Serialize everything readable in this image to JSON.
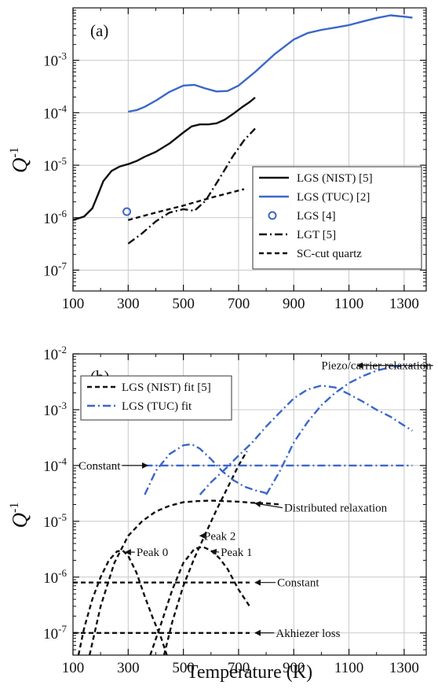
{
  "colors": {
    "black": "#111111",
    "blue": "#3a67c9",
    "grid": "#c8c8c8"
  },
  "chart_data": [
    {
      "type": "line",
      "panel_label": "(a)",
      "ylabel": "Q",
      "ylabel_exponent": "-1",
      "x_scale": "linear",
      "y_scale": "log",
      "xlim": [
        100,
        1380
      ],
      "ylim": [
        4e-08,
        0.01
      ],
      "x_ticks": [
        100,
        300,
        500,
        700,
        900,
        1100,
        1300
      ],
      "y_ticks": [
        1e-07,
        1e-06,
        1e-05,
        0.0001,
        0.001
      ],
      "y_tick_labels": [
        {
          "base": "10",
          "exp": "-7"
        },
        {
          "base": "10",
          "exp": "-6"
        },
        {
          "base": "10",
          "exp": "-5"
        },
        {
          "base": "10",
          "exp": "-4"
        },
        {
          "base": "10",
          "exp": "-3"
        }
      ],
      "grid": true,
      "legend_position": "right-middle",
      "series": [
        {
          "name": "LGS (NIST) [5]",
          "color": "#111111",
          "dash": "solid",
          "marker": "none",
          "x": [
            100,
            140,
            170,
            190,
            210,
            240,
            270,
            300,
            330,
            360,
            400,
            450,
            500,
            530,
            560,
            590,
            620,
            650,
            680,
            710,
            740,
            760
          ],
          "y": [
            9e-07,
            1.05e-06,
            1.5e-06,
            2.7e-06,
            5e-06,
            7.8e-06,
            9.5e-06,
            1.05e-05,
            1.2e-05,
            1.45e-05,
            1.8e-05,
            2.6e-05,
            4.2e-05,
            5.5e-05,
            6e-05,
            6e-05,
            6.3e-05,
            7.4e-05,
            9.5e-05,
            0.000125,
            0.00016,
            0.000195
          ]
        },
        {
          "name": "LGS (TUC) [2]",
          "color": "#3a67c9",
          "dash": "solid",
          "marker": "none",
          "x": [
            300,
            330,
            360,
            400,
            450,
            500,
            540,
            580,
            620,
            660,
            700,
            760,
            830,
            900,
            950,
            1000,
            1050,
            1100,
            1150,
            1200,
            1250,
            1300,
            1330
          ],
          "y": [
            0.000105,
            0.000112,
            0.00013,
            0.00017,
            0.00025,
            0.00033,
            0.00034,
            0.00029,
            0.000255,
            0.00026,
            0.00033,
            0.0006,
            0.0013,
            0.0025,
            0.0033,
            0.0038,
            0.0042,
            0.0047,
            0.0055,
            0.0064,
            0.0072,
            0.0068,
            0.0065
          ]
        },
        {
          "name": "LGS [4]",
          "color": "#3a67c9",
          "dash": "none",
          "marker": "open-circle",
          "x": [
            295
          ],
          "y": [
            1.3e-06
          ]
        },
        {
          "name": "LGT [5]",
          "color": "#111111",
          "dash": "dashdot",
          "marker": "none",
          "x": [
            300,
            350,
            400,
            450,
            500,
            540,
            580,
            630,
            680,
            720,
            760
          ],
          "y": [
            3.2e-07,
            5e-07,
            8.5e-07,
            1.25e-06,
            1.45e-06,
            1.35e-06,
            2.1e-06,
            5.5e-06,
            1.5e-05,
            3e-05,
            5e-05
          ]
        },
        {
          "name": "SC-cut quartz",
          "color": "#111111",
          "dash": "dashed",
          "marker": "none",
          "x": [
            300,
            400,
            500,
            600,
            720
          ],
          "y": [
            9e-07,
            1.25e-06,
            1.7e-06,
            2.4e-06,
            3.5e-06
          ]
        }
      ]
    },
    {
      "type": "line",
      "panel_label": "(b)",
      "xlabel": "Temperature  (K)",
      "ylabel": "Q",
      "ylabel_exponent": "-1",
      "x_scale": "linear",
      "y_scale": "log",
      "xlim": [
        100,
        1380
      ],
      "ylim": [
        4e-08,
        0.01
      ],
      "x_ticks": [
        100,
        300,
        500,
        700,
        900,
        1100,
        1300
      ],
      "y_ticks": [
        1e-07,
        1e-06,
        1e-05,
        0.0001,
        0.001,
        0.01
      ],
      "y_tick_labels": [
        {
          "base": "10",
          "exp": "-7"
        },
        {
          "base": "10",
          "exp": "-6"
        },
        {
          "base": "10",
          "exp": "-5"
        },
        {
          "base": "10",
          "exp": "-4"
        },
        {
          "base": "10",
          "exp": "-3"
        },
        {
          "base": "10",
          "exp": "-2"
        }
      ],
      "grid": true,
      "legend_position": "top-left",
      "legend": [
        {
          "name": "LGS (NIST) fit [5]",
          "color": "#111111",
          "dash": "dashed"
        },
        {
          "name": "LGS (TUC) fit",
          "color": "#3a67c9",
          "dash": "dashdot"
        }
      ],
      "curves": [
        {
          "color": "#111111",
          "dash": "dashed",
          "x": [
            120,
            140,
            170,
            200,
            230,
            260,
            280,
            300,
            330,
            360,
            390,
            420,
            440
          ],
          "y": [
            4e-08,
            1.2e-07,
            4e-07,
            1e-06,
            2e-06,
            2.9e-06,
            3e-06,
            2.4e-06,
            1.2e-06,
            4.5e-07,
            1.8e-07,
            8e-08,
            4e-08
          ]
        },
        {
          "color": "#111111",
          "dash": "dashed",
          "x": [
            380,
            420,
            460,
            500,
            540,
            570,
            600,
            630,
            660,
            700,
            740
          ],
          "y": [
            4e-08,
            1.5e-07,
            6e-07,
            1.8e-06,
            3.2e-06,
            3.5e-06,
            3e-06,
            2.2e-06,
            1.4e-06,
            6e-07,
            3e-07
          ]
        },
        {
          "color": "#111111",
          "dash": "dashed",
          "x": [
            160,
            200,
            250,
            300,
            350,
            400,
            450,
            500,
            550,
            600,
            650,
            700,
            750,
            800,
            850
          ],
          "y": [
            4e-08,
            3e-07,
            1.8e-06,
            5.5e-06,
            1e-05,
            1.5e-05,
            1.9e-05,
            2.2e-05,
            2.3e-05,
            2.35e-05,
            2.3e-05,
            2.25e-05,
            2.15e-05,
            2.1e-05,
            2e-05
          ]
        },
        {
          "color": "#111111",
          "dash": "dashed",
          "x": [
            430,
            460,
            500,
            540,
            580,
            620,
            660,
            700,
            730
          ],
          "y": [
            4e-08,
            1.6e-07,
            7e-07,
            2.2e-06,
            6e-06,
            1.6e-05,
            4e-05,
            0.0001,
            0.00018
          ]
        },
        {
          "color": "#111111",
          "dash": "dashed",
          "x": [
            100,
            740
          ],
          "y": [
            8e-07,
            8e-07
          ]
        },
        {
          "color": "#111111",
          "dash": "dashed",
          "x": [
            100,
            740
          ],
          "y": [
            1e-07,
            1e-07
          ]
        },
        {
          "color": "#3a67c9",
          "dash": "dashdot",
          "x": [
            360,
            1330
          ],
          "y": [
            0.0001,
            0.0001
          ]
        },
        {
          "color": "#3a67c9",
          "dash": "dashdot",
          "x": [
            360,
            400,
            450,
            500,
            530,
            560,
            600,
            640,
            680,
            720,
            760,
            800
          ],
          "y": [
            3e-05,
            8e-05,
            0.00016,
            0.00023,
            0.00024,
            0.0002,
            0.00013,
            8e-05,
            5.5e-05,
            4.2e-05,
            3.6e-05,
            3.2e-05
          ]
        },
        {
          "color": "#3a67c9",
          "dash": "dashdot",
          "x": [
            560,
            600,
            650,
            700,
            750,
            800,
            850,
            900,
            950,
            1000,
            1050,
            1100,
            1150,
            1200,
            1250,
            1300,
            1330
          ],
          "y": [
            3e-05,
            5e-05,
            8.5e-05,
            0.00015,
            0.00026,
            0.0005,
            0.0009,
            0.0016,
            0.0023,
            0.0027,
            0.0025,
            0.0019,
            0.0014,
            0.001,
            0.00075,
            0.00052,
            0.00042
          ]
        },
        {
          "color": "#3a67c9",
          "dash": "dashdot",
          "x": [
            800,
            850,
            900,
            950,
            1000,
            1050,
            1100,
            1150,
            1200,
            1250,
            1300,
            1330
          ],
          "y": [
            3e-05,
            8e-05,
            0.00026,
            0.0006,
            0.0012,
            0.002,
            0.003,
            0.004,
            0.005,
            0.0058,
            0.0061,
            0.006
          ]
        }
      ],
      "annotations": [
        {
          "text": "Piezo/carrier relaxation",
          "x": 1000,
          "y": 0.0062,
          "arrow_to": [
            1130,
            0.0062
          ]
        },
        {
          "text": "Constant",
          "x": 120,
          "y": 0.0001,
          "arrow_to": [
            370,
            0.0001
          ]
        },
        {
          "text": "Distributed relaxation",
          "x": 865,
          "y": 1.75e-05,
          "arrow_from": [
            865,
            1.75e-05
          ],
          "arrow_to": [
            760,
            2.1e-05
          ]
        },
        {
          "text": "Peak 2",
          "x": 575,
          "y": 5.5e-06,
          "arrow_to": [
            560,
            5.5e-06
          ]
        },
        {
          "text": "Peak 0",
          "x": 330,
          "y": 2.8e-06,
          "arrow_to": [
            290,
            2.8e-06
          ]
        },
        {
          "text": "Peak 1",
          "x": 635,
          "y": 2.8e-06,
          "arrow_to": [
            600,
            2.9e-06
          ]
        },
        {
          "text": "Constant",
          "x": 840,
          "y": 8e-07,
          "arrow_to": [
            760,
            8e-07
          ]
        },
        {
          "text": "Akhiezer loss",
          "x": 835,
          "y": 1e-07,
          "arrow_to": [
            760,
            1e-07
          ]
        }
      ]
    }
  ]
}
